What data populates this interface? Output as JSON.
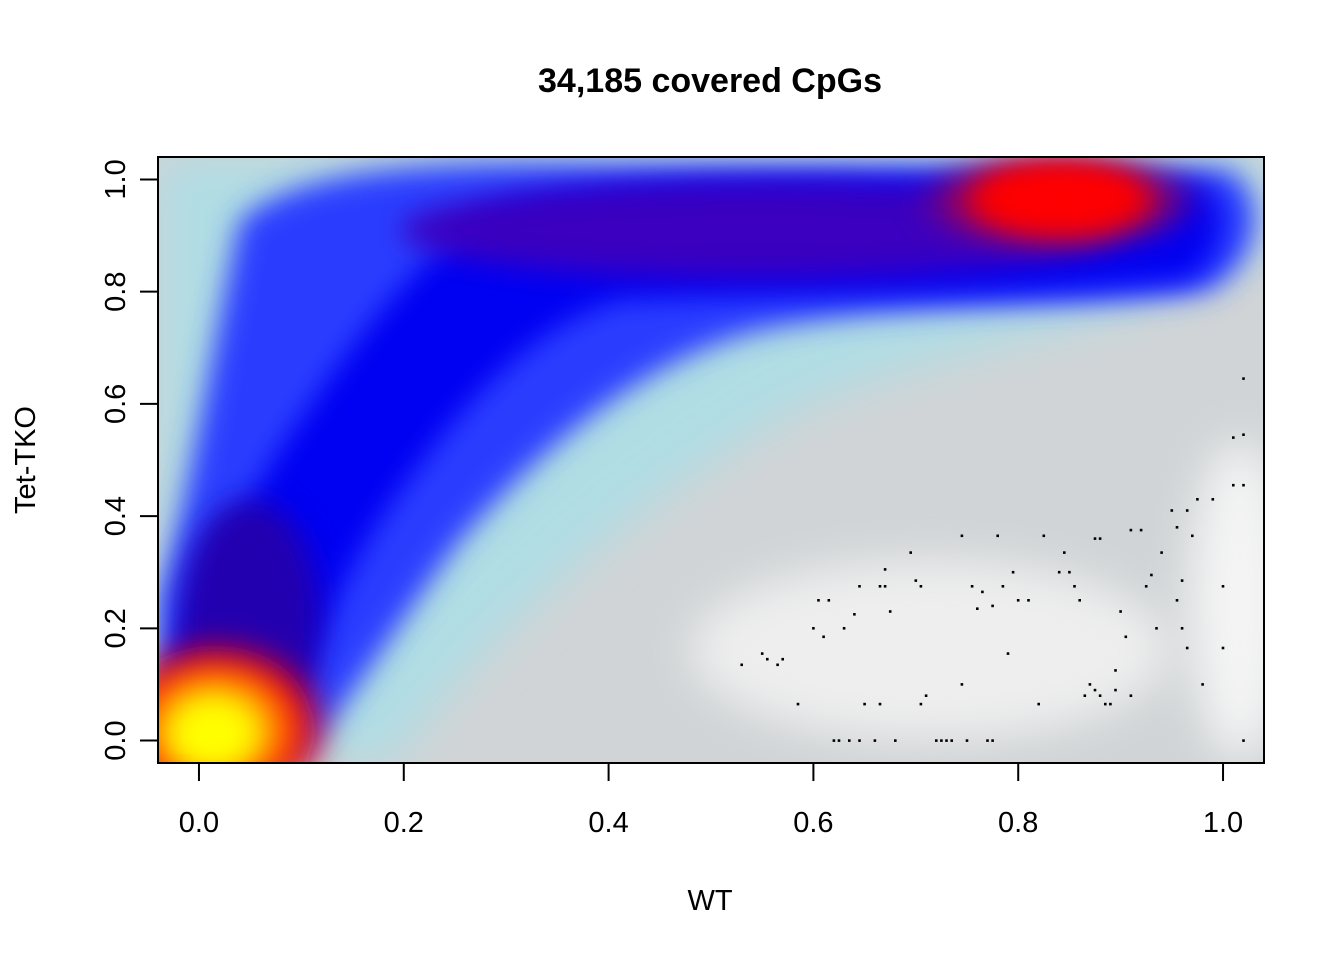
{
  "chart_data": {
    "type": "heatmap",
    "subtype": "smoothed density scatter",
    "title": "34,185 covered CpGs",
    "xlabel": "WT",
    "ylabel": "Tet-TKO",
    "xlim": [
      -0.04,
      1.04
    ],
    "ylim": [
      -0.04,
      1.04
    ],
    "x_ticks": [
      0.0,
      0.2,
      0.4,
      0.6,
      0.8,
      1.0
    ],
    "x_tick_labels": [
      "0.0",
      "0.2",
      "0.4",
      "0.6",
      "0.8",
      "1.0"
    ],
    "y_ticks": [
      0.0,
      0.2,
      0.4,
      0.6,
      0.8,
      1.0
    ],
    "y_tick_labels": [
      "0.0",
      "0.2",
      "0.4",
      "0.6",
      "0.8",
      "1.0"
    ],
    "grid": false,
    "color_ramp": [
      "#ffffff",
      "#b0e0e6",
      "#0000ff",
      "#ff0000",
      "#ffff00"
    ],
    "density_peaks": [
      {
        "x": 0.02,
        "y": 0.01,
        "level": "highest",
        "color": "yellow"
      },
      {
        "x": 0.86,
        "y": 0.96,
        "level": "high",
        "color": "red"
      }
    ],
    "outlier_points": [
      [
        0.53,
        0.135
      ],
      [
        0.55,
        0.155
      ],
      [
        0.555,
        0.145
      ],
      [
        0.565,
        0.135
      ],
      [
        0.57,
        0.145
      ],
      [
        0.585,
        0.065
      ],
      [
        0.6,
        0.2
      ],
      [
        0.605,
        0.25
      ],
      [
        0.61,
        0.185
      ],
      [
        0.615,
        0.25
      ],
      [
        0.62,
        0.0
      ],
      [
        0.625,
        0.0
      ],
      [
        0.63,
        0.2
      ],
      [
        0.635,
        0.0
      ],
      [
        0.64,
        0.225
      ],
      [
        0.645,
        0.275
      ],
      [
        0.645,
        0.0
      ],
      [
        0.65,
        0.065
      ],
      [
        0.66,
        0.0
      ],
      [
        0.665,
        0.065
      ],
      [
        0.665,
        0.275
      ],
      [
        0.67,
        0.275
      ],
      [
        0.67,
        0.305
      ],
      [
        0.675,
        0.23
      ],
      [
        0.68,
        0.0
      ],
      [
        0.695,
        0.335
      ],
      [
        0.7,
        0.285
      ],
      [
        0.705,
        0.275
      ],
      [
        0.705,
        0.065
      ],
      [
        0.71,
        0.08
      ],
      [
        0.72,
        0.0
      ],
      [
        0.725,
        0.0
      ],
      [
        0.73,
        0.0
      ],
      [
        0.735,
        0.0
      ],
      [
        0.745,
        0.365
      ],
      [
        0.745,
        0.1
      ],
      [
        0.75,
        0.0
      ],
      [
        0.755,
        0.275
      ],
      [
        0.76,
        0.235
      ],
      [
        0.765,
        0.265
      ],
      [
        0.77,
        0.0
      ],
      [
        0.775,
        0.0
      ],
      [
        0.775,
        0.24
      ],
      [
        0.78,
        0.365
      ],
      [
        0.785,
        0.275
      ],
      [
        0.79,
        0.155
      ],
      [
        0.795,
        0.3
      ],
      [
        0.8,
        0.25
      ],
      [
        0.81,
        0.25
      ],
      [
        0.82,
        0.065
      ],
      [
        0.825,
        0.365
      ],
      [
        0.84,
        0.3
      ],
      [
        0.845,
        0.335
      ],
      [
        0.85,
        0.3
      ],
      [
        0.855,
        0.275
      ],
      [
        0.86,
        0.25
      ],
      [
        0.865,
        0.08
      ],
      [
        0.87,
        0.1
      ],
      [
        0.875,
        0.36
      ],
      [
        0.875,
        0.09
      ],
      [
        0.88,
        0.36
      ],
      [
        0.88,
        0.08
      ],
      [
        0.885,
        0.065
      ],
      [
        0.89,
        0.065
      ],
      [
        0.895,
        0.125
      ],
      [
        0.895,
        0.09
      ],
      [
        0.9,
        0.23
      ],
      [
        0.905,
        0.185
      ],
      [
        0.91,
        0.08
      ],
      [
        0.91,
        0.375
      ],
      [
        0.92,
        0.375
      ],
      [
        0.925,
        0.275
      ],
      [
        0.93,
        0.295
      ],
      [
        0.935,
        0.2
      ],
      [
        0.94,
        0.335
      ],
      [
        0.95,
        0.41
      ],
      [
        0.955,
        0.38
      ],
      [
        0.955,
        0.25
      ],
      [
        0.96,
        0.285
      ],
      [
        0.96,
        0.2
      ],
      [
        0.965,
        0.41
      ],
      [
        0.965,
        0.165
      ],
      [
        0.97,
        0.365
      ],
      [
        0.975,
        0.43
      ],
      [
        0.98,
        0.1
      ],
      [
        0.99,
        0.43
      ],
      [
        1.0,
        0.275
      ],
      [
        1.0,
        0.165
      ],
      [
        1.01,
        0.54
      ],
      [
        1.01,
        0.455
      ],
      [
        1.02,
        0.645
      ],
      [
        1.02,
        0.545
      ],
      [
        1.02,
        0.455
      ],
      [
        1.02,
        0.0
      ]
    ]
  }
}
